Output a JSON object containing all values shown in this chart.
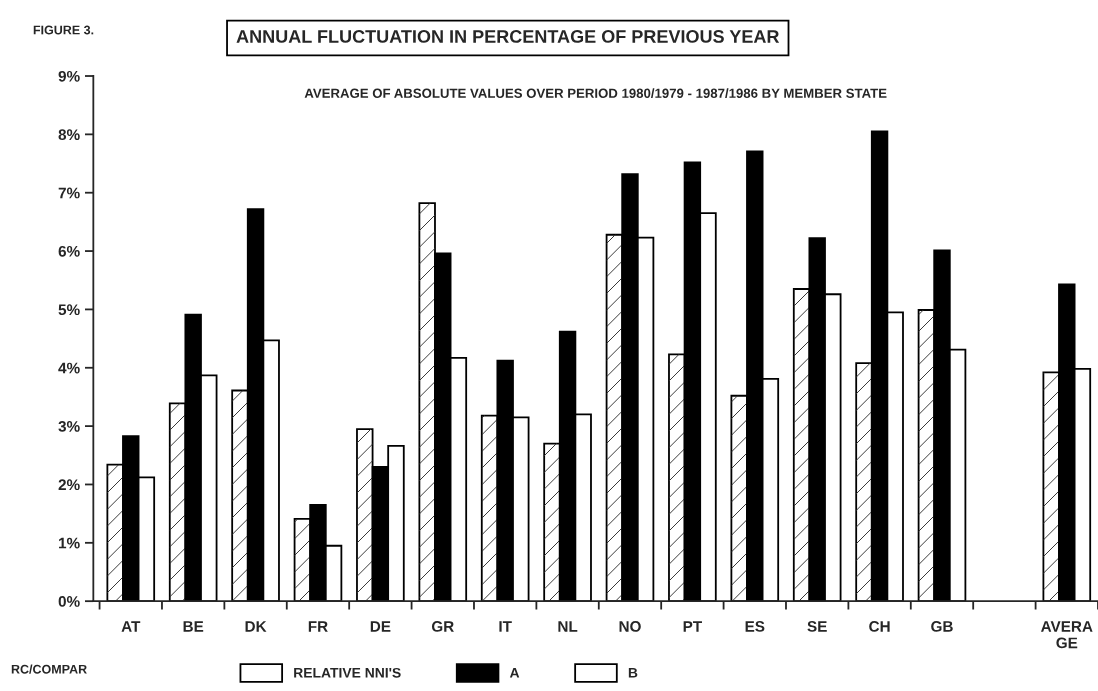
{
  "chart_data": {
    "type": "bar",
    "title": "ANNUAL FLUCTUATION IN PERCENTAGE OF PREVIOUS YEAR",
    "subtitle": "AVERAGE OF ABSOLUTE VALUES OVER PERIOD 1980/1979 - 1987/1986 BY MEMBER STATE",
    "annotations": [
      "FIGURE 3.",
      "RC/COMPAR"
    ],
    "categories": [
      "AT",
      "BE",
      "DK",
      "FR",
      "DE",
      "GR",
      "IT",
      "NL",
      "NO",
      "PT",
      "ES",
      "SE",
      "CH",
      "GB",
      null,
      "AVERA\nGE"
    ],
    "series": [
      {
        "name": "RELATIVE NNI'S",
        "color": "#ffffff",
        "values": [
          2.34,
          3.39,
          3.61,
          1.41,
          2.95,
          6.82,
          3.18,
          2.7,
          6.28,
          4.23,
          3.52,
          5.35,
          4.08,
          4.99,
          null,
          3.92
        ]
      },
      {
        "name": "A",
        "color": "#000000",
        "values": [
          2.83,
          4.91,
          6.72,
          1.65,
          2.3,
          5.96,
          4.12,
          4.62,
          7.32,
          7.52,
          7.71,
          6.22,
          8.05,
          6.01,
          null,
          5.43
        ]
      },
      {
        "name": "B",
        "color": "#ffffff",
        "values": [
          2.12,
          3.87,
          4.47,
          0.95,
          2.66,
          4.17,
          3.15,
          3.2,
          6.23,
          6.65,
          3.81,
          5.26,
          4.95,
          4.31,
          null,
          3.98
        ]
      }
    ],
    "ylim": [
      0,
      9
    ],
    "yticks": [
      {
        "value": 0,
        "label": "0%"
      },
      {
        "value": 1,
        "label": "1%"
      },
      {
        "value": 2,
        "label": "2%"
      },
      {
        "value": 3,
        "label": "3%"
      },
      {
        "value": 4,
        "label": "4%"
      },
      {
        "value": 5,
        "label": "5%"
      },
      {
        "value": 6,
        "label": "6%"
      },
      {
        "value": 7,
        "label": "7%"
      },
      {
        "value": 8,
        "label": "8%"
      },
      {
        "value": 9,
        "label": "9%"
      }
    ],
    "grid": false,
    "legend": "bottom"
  }
}
